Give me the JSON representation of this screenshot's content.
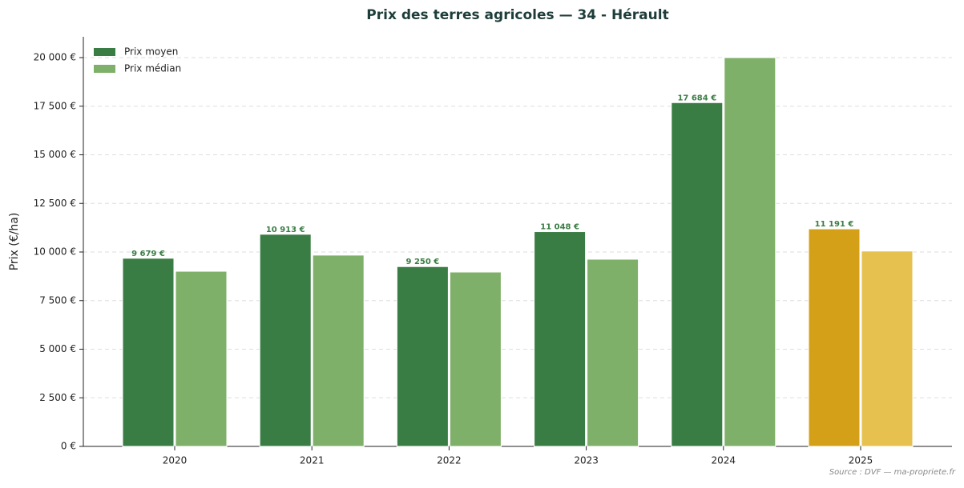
{
  "chart_data": {
    "type": "bar",
    "title": "Prix des terres agricoles — 34 - Hérault",
    "ylabel": "Prix (€/ha)",
    "annotation": "Source : DVF — ma-propriete.fr",
    "categories": [
      "2020",
      "2021",
      "2022",
      "2023",
      "2024",
      "2025"
    ],
    "series": [
      {
        "name": "Prix moyen",
        "color": "#3a7d44",
        "colors": [
          "#3a7d44",
          "#3a7d44",
          "#3a7d44",
          "#3a7d44",
          "#3a7d44",
          "#d4a017"
        ],
        "values": [
          9679,
          10913,
          9250,
          11048,
          17684,
          11191
        ],
        "value_labels": [
          "9 679 €",
          "10 913 €",
          "9 250 €",
          "11 048 €",
          "17 684 €",
          "11 191 €"
        ]
      },
      {
        "name": "Prix médian",
        "color": "#7fb069",
        "colors": [
          "#7fb069",
          "#7fb069",
          "#7fb069",
          "#7fb069",
          "#7fb069",
          "#e6c150"
        ],
        "values": [
          9010,
          9840,
          8970,
          9630,
          20000,
          10050
        ]
      }
    ],
    "ylim": [
      0,
      21070
    ],
    "yticks": [
      {
        "value": 0,
        "label": "0 €"
      },
      {
        "value": 2500,
        "label": "2 500 €"
      },
      {
        "value": 5000,
        "label": "5 000 €"
      },
      {
        "value": 7500,
        "label": "7 500 €"
      },
      {
        "value": 10000,
        "label": "10 000 €"
      },
      {
        "value": 12500,
        "label": "12 500 €"
      },
      {
        "value": 15000,
        "label": "15 000 €"
      },
      {
        "value": 17500,
        "label": "17 500 €"
      },
      {
        "value": 20000,
        "label": "20 000 €"
      }
    ],
    "grid": true,
    "legend": "upper left"
  }
}
